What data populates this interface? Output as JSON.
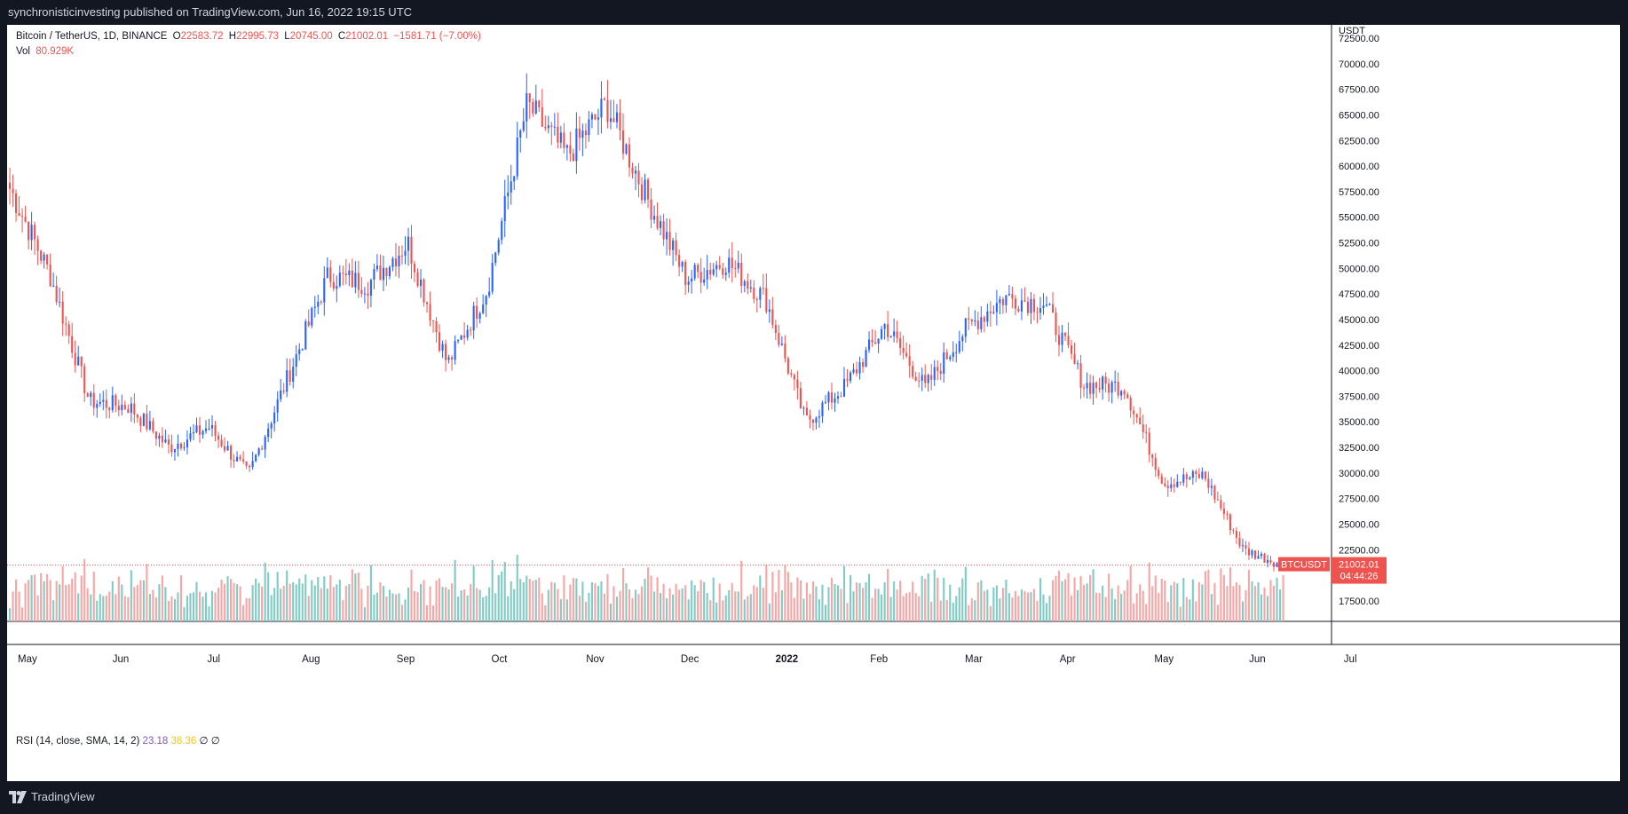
{
  "header": {
    "published": "synchronisticinvesting published on TradingView.com, Jun 16, 2022 19:15 UTC"
  },
  "footer": {
    "brand": "TradingView",
    "brand_icon": "tradingview-logo-icon"
  },
  "legend": {
    "symbol": "Bitcoin / TetherUS, 1D, BINANCE",
    "open_label": "O",
    "open": "22583.72",
    "high_label": "H",
    "high": "22995.73",
    "low_label": "L",
    "low": "20745.00",
    "close_label": "C",
    "close": "21002.01",
    "change": "−1581.71 (−7.00%)",
    "vol_label": "Vol",
    "vol": "80.929K"
  },
  "rsi": {
    "label": "RSI (14, close, SMA, 14, 2)",
    "value": "23.18",
    "sma": "38.36",
    "extra1": "∅",
    "extra2": "∅"
  },
  "price_badge": {
    "ticker": "BTCUSDT",
    "price": "21002.01",
    "countdown": "04:44:26"
  },
  "colors": {
    "up": "#2962ff",
    "down": "#ef5350",
    "vol_up": "#80cbc4",
    "vol_down": "#f7a5a5",
    "grid": "#f0f3fa"
  },
  "chart_data": {
    "type": "candlestick",
    "currency": "USDT",
    "y_ticks": [
      "72500.00",
      "70000.00",
      "67500.00",
      "65000.00",
      "62500.00",
      "60000.00",
      "57500.00",
      "55000.00",
      "52500.00",
      "50000.00",
      "47500.00",
      "45000.00",
      "42500.00",
      "40000.00",
      "37500.00",
      "35000.00",
      "32500.00",
      "30000.00",
      "27500.00",
      "25000.00",
      "22500.00",
      "17500.00"
    ],
    "ylim": [
      15500,
      73800
    ],
    "x_ticks": [
      {
        "label": "May",
        "bold": false
      },
      {
        "label": "Jun",
        "bold": false
      },
      {
        "label": "Jul",
        "bold": false
      },
      {
        "label": "Aug",
        "bold": false
      },
      {
        "label": "Sep",
        "bold": false
      },
      {
        "label": "Oct",
        "bold": false
      },
      {
        "label": "Nov",
        "bold": false
      },
      {
        "label": "Dec",
        "bold": false
      },
      {
        "label": "2022",
        "bold": true
      },
      {
        "label": "Feb",
        "bold": false
      },
      {
        "label": "Mar",
        "bold": false
      },
      {
        "label": "Apr",
        "bold": false
      },
      {
        "label": "May",
        "bold": false
      },
      {
        "label": "Jun",
        "bold": false
      },
      {
        "label": "Jul",
        "bold": false
      }
    ],
    "last_price": 21002.01,
    "series": [
      {
        "date": "2021-05",
        "close": 57800
      },
      {
        "date": "2021-05-12",
        "close": 49500
      },
      {
        "date": "2021-05-19",
        "close": 37000
      },
      {
        "date": "2021-06",
        "close": 36500
      },
      {
        "date": "2021-06-22",
        "close": 32500
      },
      {
        "date": "2021-07",
        "close": 34500
      },
      {
        "date": "2021-07-20",
        "close": 29800
      },
      {
        "date": "2021-08",
        "close": 39500
      },
      {
        "date": "2021-08-22",
        "close": 49300
      },
      {
        "date": "2021-09",
        "close": 48500
      },
      {
        "date": "2021-09-06",
        "close": 52500
      },
      {
        "date": "2021-09-21",
        "close": 40600
      },
      {
        "date": "2021-10",
        "close": 48000
      },
      {
        "date": "2021-10-20",
        "close": 66000
      },
      {
        "date": "2021-11",
        "close": 61000
      },
      {
        "date": "2021-11-10",
        "close": 66000
      },
      {
        "date": "2021-12",
        "close": 57000
      },
      {
        "date": "2021-12-04",
        "close": 49000
      },
      {
        "date": "2021-12-27",
        "close": 50700
      },
      {
        "date": "2022-01",
        "close": 47000
      },
      {
        "date": "2022-01-22",
        "close": 35000
      },
      {
        "date": "2022-02",
        "close": 38500
      },
      {
        "date": "2022-02-10",
        "close": 44500
      },
      {
        "date": "2022-02-24",
        "close": 38300
      },
      {
        "date": "2022-03",
        "close": 44000
      },
      {
        "date": "2022-03-28",
        "close": 47200
      },
      {
        "date": "2022-04",
        "close": 46500
      },
      {
        "date": "2022-04-30",
        "close": 38600
      },
      {
        "date": "2022-05",
        "close": 38500
      },
      {
        "date": "2022-05-12",
        "close": 29000
      },
      {
        "date": "2022-06",
        "close": 29800
      },
      {
        "date": "2022-06-13",
        "close": 22500
      },
      {
        "date": "2022-06-16",
        "close": 21002.01
      }
    ]
  }
}
